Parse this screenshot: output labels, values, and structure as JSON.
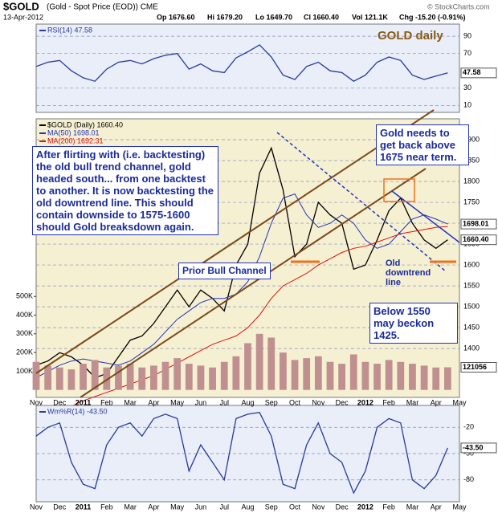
{
  "header": {
    "symbol": "$GOLD",
    "name": "(Gold - Spot Price (EOD)) CME",
    "date": "13-Apr-2012",
    "stats": [
      "Op 1676.60",
      "Hi 1679.20",
      "Lo 1649.70",
      "Cl 1660.40",
      "Vol 121.1K",
      "Chg -15.20 (-0.91%)"
    ],
    "credit": "© StockCharts.com"
  },
  "chart_data": [
    {
      "type": "line",
      "title": "GOLD daily",
      "ylim": [
        2,
        104
      ],
      "yticks": [
        10,
        30,
        70,
        90
      ],
      "series": [
        {
          "name": "RSI(14) 47.58",
          "color": "#2a3a9a",
          "values": [
            55,
            60,
            62,
            50,
            42,
            38,
            52,
            60,
            62,
            58,
            64,
            68,
            70,
            52,
            58,
            50,
            48,
            65,
            72,
            80,
            66,
            45,
            40,
            55,
            60,
            50,
            48,
            38,
            45,
            60,
            66,
            62,
            45,
            40,
            44,
            47.58,
            null
          ]
        }
      ],
      "value_boxes": [
        {
          "value": 47.58,
          "label": "47.58"
        }
      ]
    },
    {
      "type": "line",
      "ylim": [
        1283,
        1950
      ],
      "yticks": [
        1400,
        1450,
        1500,
        1550,
        1600,
        1650,
        1700,
        1750,
        1800,
        1850,
        1900
      ],
      "y2lim": [
        -40000,
        1450000
      ],
      "y2ticks": [
        {
          "value": 100000,
          "label": "100K"
        },
        {
          "value": 200000,
          "label": "200K"
        },
        {
          "value": 300000,
          "label": "300K"
        },
        {
          "value": 400000,
          "label": "400K"
        },
        {
          "value": 500000,
          "label": "500K"
        }
      ],
      "categories": [
        "Nov",
        null,
        "Dec",
        null,
        "2011",
        null,
        "Feb",
        null,
        "Mar",
        null,
        "Apr",
        null,
        "May",
        null,
        "Jun",
        null,
        "Jul",
        null,
        "Aug",
        null,
        "Sep",
        null,
        "Oct",
        null,
        "Nov",
        null,
        "Dec",
        null,
        "2012",
        null,
        "Feb",
        null,
        "Mar",
        null,
        "Apr",
        null,
        "May"
      ],
      "series": [
        {
          "name": "$GOLD (Daily) 1660.40",
          "color": "#000000",
          "values": [
            1360,
            1370,
            1390,
            1380,
            1360,
            1330,
            1340,
            1380,
            1420,
            1430,
            1460,
            1500,
            1540,
            1500,
            1540,
            1520,
            1490,
            1600,
            1650,
            1820,
            1880,
            1780,
            1620,
            1650,
            1750,
            1720,
            1700,
            1590,
            1600,
            1660,
            1730,
            1760,
            1700,
            1660,
            1640,
            1660.4,
            null
          ]
        },
        {
          "name": "MA(50) 1698.01",
          "color": "#2233bb",
          "values": [
            1330,
            1345,
            1360,
            1370,
            1375,
            1370,
            1365,
            1360,
            1370,
            1390,
            1410,
            1440,
            1470,
            1490,
            1510,
            1520,
            1520,
            1530,
            1560,
            1620,
            1700,
            1760,
            1770,
            1720,
            1690,
            1700,
            1720,
            1700,
            1660,
            1640,
            1650,
            1680,
            1710,
            1720,
            1710,
            1698.01,
            null
          ]
        },
        {
          "name": "MA(200) 1692.31",
          "color": "#dd1111",
          "values": [
            1230,
            1240,
            1250,
            1262,
            1275,
            1285,
            1295,
            1305,
            1315,
            1325,
            1335,
            1350,
            1365,
            1380,
            1395,
            1410,
            1420,
            1430,
            1450,
            1480,
            1520,
            1550,
            1565,
            1580,
            1600,
            1615,
            1630,
            1640,
            1645,
            1655,
            1665,
            1675,
            1680,
            1685,
            1690,
            1692.31,
            null
          ]
        },
        {
          "color": "#c09090",
          "axis": "y2",
          "values": [
            150000,
            130000,
            120000,
            110000,
            140000,
            160000,
            120000,
            130000,
            140000,
            120000,
            130000,
            150000,
            170000,
            140000,
            130000,
            120000,
            150000,
            180000,
            250000,
            300000,
            280000,
            200000,
            160000,
            170000,
            180000,
            150000,
            140000,
            190000,
            150000,
            140000,
            160000,
            150000,
            140000,
            130000,
            120000,
            121056,
            null
          ]
        }
      ],
      "value_boxes": [
        {
          "value": 1698.01,
          "label": "1698.01"
        },
        {
          "value": 1660.4,
          "label": "1660.40"
        },
        {
          "value": 121056,
          "label": "121056",
          "axis": "y2"
        }
      ],
      "annotations": [
        "After flirting with (i.e. backtesting) the old bull trend channel, gold headed south... from one backtest to another. It is now backtesting the old downtrend line. This should contain downside to 1575-1600 should Gold breaksdown again.",
        "Gold needs to get back above 1675 near term.",
        "Below 1550 may beckon 1425.",
        "Prior Bull Channel",
        "Old downtrend line"
      ]
    },
    {
      "type": "line",
      "ylim": [
        -105,
        5
      ],
      "yticks": [
        -20,
        -50,
        -80
      ],
      "series": [
        {
          "name": "Wm%R(14) -43.50",
          "color": "#2a3a9a",
          "values": [
            -30,
            -20,
            -15,
            -60,
            -85,
            -90,
            -40,
            -20,
            -15,
            -30,
            -10,
            -5,
            -10,
            -70,
            -40,
            -60,
            -80,
            -10,
            -5,
            -3,
            -30,
            -85,
            -90,
            -40,
            -15,
            -50,
            -60,
            -95,
            -70,
            -20,
            -10,
            -15,
            -80,
            -90,
            -75,
            -43.5,
            null
          ]
        }
      ],
      "value_boxes": [
        {
          "value": -43.5,
          "label": "-43.50"
        }
      ]
    }
  ]
}
